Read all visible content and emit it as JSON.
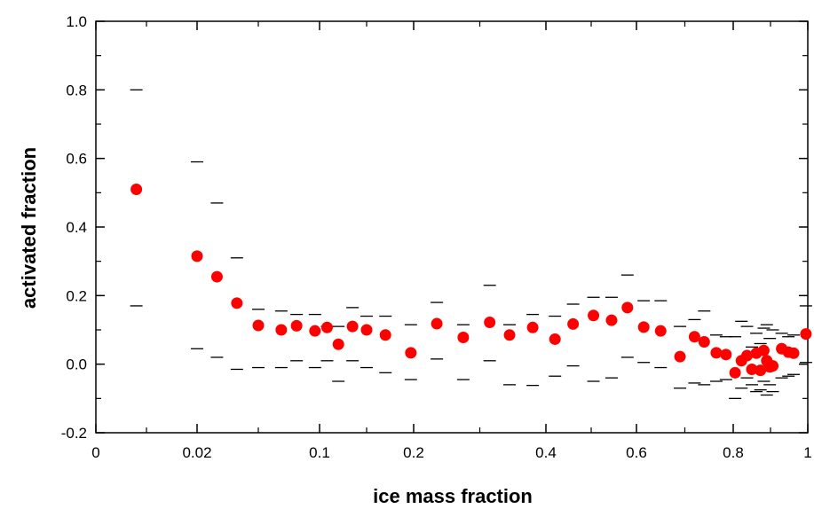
{
  "chart_data": {
    "type": "scatter",
    "title": "",
    "xlabel": "ice mass fraction",
    "ylabel": "activated fraction",
    "ylim": [
      -0.2,
      1.0
    ],
    "yticks": [
      -0.2,
      0.0,
      0.2,
      0.4,
      0.6,
      0.8,
      1.0
    ],
    "ytick_labels": [
      "-0.2",
      "0.0",
      "0.2",
      "0.4",
      "0.6",
      "0.8",
      "1.0"
    ],
    "x_scale": "nonlinear (compressed near 0)",
    "xticks": [
      0,
      0.02,
      0.1,
      0.2,
      0.4,
      0.6,
      0.8,
      1
    ],
    "xtick_labels": [
      "0",
      "0.02",
      "0.1",
      "0.2",
      "0.4",
      "0.6",
      "0.8",
      "1"
    ],
    "grid": false,
    "marker_color": "#ff0000",
    "errorbar_color": "#000000",
    "series": [
      {
        "points": [
          {
            "x": 0.008,
            "y": 0.51,
            "lo": 0.17,
            "hi": 0.8
          },
          {
            "x": 0.02,
            "y": 0.315,
            "lo": 0.045,
            "hi": 0.59
          },
          {
            "x": 0.033,
            "y": 0.255,
            "lo": 0.02,
            "hi": 0.47
          },
          {
            "x": 0.046,
            "y": 0.178,
            "lo": -0.015,
            "hi": 0.31
          },
          {
            "x": 0.06,
            "y": 0.113,
            "lo": -0.01,
            "hi": 0.16
          },
          {
            "x": 0.075,
            "y": 0.1,
            "lo": -0.01,
            "hi": 0.155
          },
          {
            "x": 0.085,
            "y": 0.112,
            "lo": 0.01,
            "hi": 0.145
          },
          {
            "x": 0.097,
            "y": 0.097,
            "lo": -0.01,
            "hi": 0.145
          },
          {
            "x": 0.108,
            "y": 0.107,
            "lo": 0.01,
            "hi": 0.11
          },
          {
            "x": 0.12,
            "y": 0.058,
            "lo": -0.05,
            "hi": 0.11
          },
          {
            "x": 0.135,
            "y": 0.11,
            "lo": 0.01,
            "hi": 0.165
          },
          {
            "x": 0.15,
            "y": 0.1,
            "lo": -0.01,
            "hi": 0.14
          },
          {
            "x": 0.17,
            "y": 0.085,
            "lo": -0.025,
            "hi": 0.14
          },
          {
            "x": 0.197,
            "y": 0.033,
            "lo": -0.045,
            "hi": 0.115
          },
          {
            "x": 0.235,
            "y": 0.118,
            "lo": 0.015,
            "hi": 0.18
          },
          {
            "x": 0.275,
            "y": 0.078,
            "lo": -0.045,
            "hi": 0.115
          },
          {
            "x": 0.315,
            "y": 0.122,
            "lo": 0.01,
            "hi": 0.23
          },
          {
            "x": 0.345,
            "y": 0.085,
            "lo": -0.06,
            "hi": 0.115
          },
          {
            "x": 0.38,
            "y": 0.107,
            "lo": -0.062,
            "hi": 0.145
          },
          {
            "x": 0.42,
            "y": 0.073,
            "lo": -0.035,
            "hi": 0.14
          },
          {
            "x": 0.46,
            "y": 0.117,
            "lo": -0.005,
            "hi": 0.175
          },
          {
            "x": 0.505,
            "y": 0.142,
            "lo": -0.05,
            "hi": 0.195
          },
          {
            "x": 0.545,
            "y": 0.128,
            "lo": -0.04,
            "hi": 0.195
          },
          {
            "x": 0.58,
            "y": 0.165,
            "lo": 0.02,
            "hi": 0.26
          },
          {
            "x": 0.615,
            "y": 0.108,
            "lo": 0.005,
            "hi": 0.185
          },
          {
            "x": 0.65,
            "y": 0.097,
            "lo": -0.01,
            "hi": 0.185
          },
          {
            "x": 0.69,
            "y": 0.022,
            "lo": -0.07,
            "hi": 0.11
          },
          {
            "x": 0.72,
            "y": 0.08,
            "lo": -0.055,
            "hi": 0.13
          },
          {
            "x": 0.74,
            "y": 0.065,
            "lo": -0.06,
            "hi": 0.155
          },
          {
            "x": 0.765,
            "y": 0.033,
            "lo": -0.05,
            "hi": 0.085
          },
          {
            "x": 0.785,
            "y": 0.028,
            "lo": -0.045,
            "hi": 0.08
          },
          {
            "x": 0.805,
            "y": -0.025,
            "lo": -0.1,
            "hi": 0.08
          },
          {
            "x": 0.822,
            "y": 0.01,
            "lo": -0.07,
            "hi": 0.125
          },
          {
            "x": 0.837,
            "y": 0.025,
            "lo": -0.04,
            "hi": 0.11
          },
          {
            "x": 0.85,
            "y": -0.015,
            "lo": -0.06,
            "hi": 0.05
          },
          {
            "x": 0.862,
            "y": 0.032,
            "lo": -0.08,
            "hi": 0.09
          },
          {
            "x": 0.873,
            "y": -0.018,
            "lo": -0.075,
            "hi": 0.06
          },
          {
            "x": 0.882,
            "y": 0.04,
            "lo": -0.05,
            "hi": 0.105
          },
          {
            "x": 0.89,
            "y": 0.01,
            "lo": -0.09,
            "hi": 0.115
          },
          {
            "x": 0.898,
            "y": -0.008,
            "lo": -0.06,
            "hi": 0.075
          },
          {
            "x": 0.906,
            "y": -0.005,
            "lo": -0.08,
            "hi": 0.1
          },
          {
            "x": 0.93,
            "y": 0.045,
            "lo": -0.04,
            "hi": 0.09
          },
          {
            "x": 0.948,
            "y": 0.035,
            "lo": -0.035,
            "hi": 0.08
          },
          {
            "x": 0.962,
            "y": 0.032,
            "lo": -0.03,
            "hi": 0.085
          },
          {
            "x": 0.995,
            "y": 0.088,
            "lo": 0.005,
            "hi": 0.17
          }
        ]
      }
    ]
  }
}
